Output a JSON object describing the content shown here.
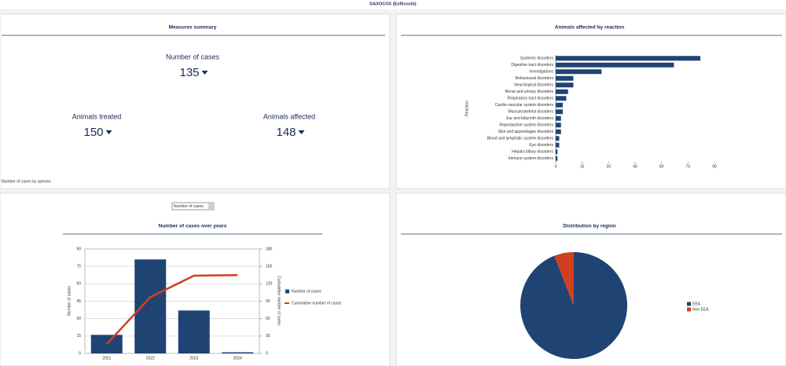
{
  "header": {
    "title": "DAXOCOX (Enflicoxib)"
  },
  "summary": {
    "title": "Measures summary",
    "measures": [
      {
        "label": "Number of cases",
        "value": 135
      },
      {
        "label": "Animals treated",
        "value": 150
      },
      {
        "label": "Animals affected",
        "value": 148
      }
    ],
    "note": "Number of cases by species"
  },
  "dropdown": {
    "selected": "Number of cases"
  },
  "chart_data": [
    {
      "type": "barh",
      "title": "Animals affected by reaction",
      "y_label": "Reaction",
      "categories": [
        "Systemic disorders",
        "Digestive tract disorders",
        "Investigations",
        "Behavioural disorders",
        "Neurological disorders",
        "Renal and urinary disorders",
        "Respiratory tract disorders",
        "Cardio-vascular system disorders",
        "Musculoskeletal disorders",
        "Ear and labyrinth disorders",
        "Reproductive system disorders",
        "Skin and appendages disorders",
        "Blood and lymphatic system disorders",
        "Eye disorders",
        "Hepato-biliary disorders",
        "Immune system disorders"
      ],
      "values": [
        82,
        67,
        26,
        10,
        10,
        7,
        6,
        4,
        4,
        3,
        3,
        3,
        2,
        2,
        1,
        1
      ],
      "color": "#1f4474",
      "xlim": [
        0,
        90
      ],
      "xticks": [
        0,
        15,
        30,
        45,
        60,
        75,
        90
      ]
    },
    {
      "type": "bar",
      "title": "Number of cases over years",
      "y_label": "Number of cases",
      "y2_label": "Cumulative number of cases",
      "categories": [
        "2021",
        "2022",
        "2023",
        "2024"
      ],
      "series": [
        {
          "name": "Number of cases",
          "type": "bar",
          "color": "#1f4474",
          "values": [
            16,
            81,
            37,
            1
          ]
        },
        {
          "name": "Cumulative number of cases",
          "type": "line",
          "axis": "y2",
          "color": "#d23f1e",
          "values": [
            16,
            97,
            134,
            135
          ]
        }
      ],
      "ylim": [
        0,
        90
      ],
      "yticks": [
        0,
        15,
        30,
        45,
        60,
        75,
        90
      ],
      "y2lim": [
        0,
        180
      ],
      "y2ticks": [
        0,
        30,
        60,
        90,
        120,
        150,
        180
      ],
      "grid": true
    },
    {
      "type": "pie",
      "title": "Distribution by region",
      "categories": [
        "EEA",
        "Non EEA"
      ],
      "values": [
        127,
        8
      ],
      "colors": [
        "#1f4474",
        "#d23f1e"
      ]
    }
  ]
}
